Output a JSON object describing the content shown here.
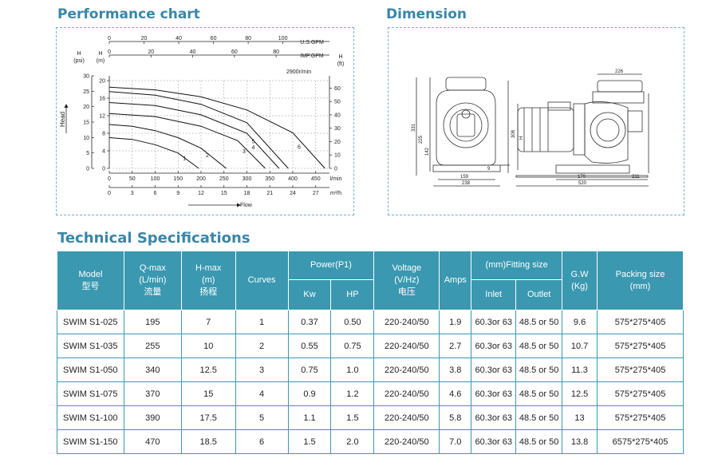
{
  "sections": {
    "performance_title": "Performance chart",
    "dimension_title": "Dimension",
    "spec_title": "Technical Specifications"
  },
  "chart_data": {
    "type": "line",
    "title": "",
    "rpm_label": "2900r/min",
    "axes": {
      "top1": {
        "unit": "U.S.GPM",
        "ticks": [
          "0",
          "20",
          "40",
          "60",
          "80",
          "100"
        ]
      },
      "top2": {
        "unit": "IMP.GPM",
        "ticks": [
          "0",
          "20",
          "40",
          "60",
          "80"
        ]
      },
      "left_psi": {
        "unit": "(psi)",
        "label": "H",
        "ticks": [
          "0",
          "5",
          "10",
          "15",
          "20",
          "25",
          "30"
        ]
      },
      "left_m": {
        "unit": "(m)",
        "label": "H",
        "ticks": [
          "0",
          "4",
          "8",
          "12",
          "16",
          "20"
        ]
      },
      "right_ft": {
        "unit": "(ft)",
        "label": "H",
        "ticks": [
          "0",
          "10",
          "20",
          "30",
          "40",
          "50",
          "60"
        ]
      },
      "bottom1": {
        "unit": "l/min",
        "ticks": [
          "0",
          "50",
          "100",
          "150",
          "200",
          "250",
          "300",
          "350",
          "400",
          "450"
        ]
      },
      "bottom2": {
        "unit": "m³/h",
        "ticks": [
          "0",
          "3",
          "6",
          "9",
          "12",
          "15",
          "18",
          "21",
          "24",
          "27"
        ]
      },
      "ylabel": "Head",
      "xlabel": "Flow",
      "xlim": [
        0,
        480
      ],
      "ylim": [
        0,
        20
      ]
    },
    "series": [
      {
        "name": "1",
        "x": [
          0,
          50,
          100,
          150,
          195
        ],
        "y": [
          7,
          6.6,
          5.4,
          3.5,
          0
        ]
      },
      {
        "name": "2",
        "x": [
          0,
          50,
          100,
          150,
          200,
          255
        ],
        "y": [
          10,
          9.6,
          8.6,
          7,
          4.6,
          0
        ]
      },
      {
        "name": "3",
        "x": [
          0,
          100,
          200,
          280,
          340
        ],
        "y": [
          12.5,
          11.8,
          9.6,
          6.3,
          0
        ]
      },
      {
        "name": "4",
        "x": [
          0,
          100,
          200,
          300,
          370
        ],
        "y": [
          15,
          14.3,
          12.2,
          8.0,
          0
        ]
      },
      {
        "name": "5",
        "x": [
          0,
          100,
          200,
          300,
          390
        ],
        "y": [
          17.5,
          16.7,
          14.6,
          10.4,
          0
        ]
      },
      {
        "name": "6",
        "x": [
          0,
          100,
          200,
          300,
          400,
          470
        ],
        "y": [
          18.5,
          17.9,
          16.3,
          13.3,
          8.1,
          0
        ]
      }
    ]
  },
  "dimension": {
    "front": {
      "d331": "331",
      "d225": "225",
      "d142": "142",
      "d159": "159",
      "d238": "238",
      "d9": "9"
    },
    "side": {
      "d226": "226",
      "d308": "308",
      "dH": "H",
      "d170": "170",
      "d211": "211",
      "d520": "520"
    }
  },
  "table": {
    "headers": {
      "model": [
        "Model",
        "型号"
      ],
      "qmax": [
        "Q-max",
        "(L/min)",
        "流量"
      ],
      "hmax": [
        "H-max",
        "(m)",
        "扬程"
      ],
      "curves": "Curves",
      "power": "Power(P1)",
      "kw": "Kw",
      "hp": "HP",
      "voltage": [
        "Voltage",
        "(V/Hz)",
        "电压"
      ],
      "amps": "Amps",
      "fitting": "(mm)Fitting size",
      "inlet": "Inlet",
      "outlet": "Outlet",
      "gw": [
        "G.W",
        "(Kg)"
      ],
      "packing": [
        "Packing size",
        "(mm)"
      ]
    },
    "rows": [
      [
        "SWIM S1-025",
        "195",
        "7",
        "1",
        "0.37",
        "0.50",
        "220-240/50",
        "1.9",
        "60.3or 63",
        "48.5 or 50",
        "9.6",
        "575*275*405"
      ],
      [
        "SWIM S1-035",
        "255",
        "10",
        "2",
        "0.55",
        "0.75",
        "220-240/50",
        "2.7",
        "60.3or 63",
        "48.5 or 50",
        "10.7",
        "575*275*405"
      ],
      [
        "SWIM S1-050",
        "340",
        "12.5",
        "3",
        "0.75",
        "1.0",
        "220-240/50",
        "3.8",
        "60.3or 63",
        "48.5 or 50",
        "11.3",
        "575*275*405"
      ],
      [
        "SWIM S1-075",
        "370",
        "15",
        "4",
        "0.9",
        "1.2",
        "220-240/50",
        "4.6",
        "60.3or 63",
        "48.5 or 50",
        "12.5",
        "575*275*405"
      ],
      [
        "SWIM S1-100",
        "390",
        "17.5",
        "5",
        "1.1",
        "1.5",
        "220-240/50",
        "5.8",
        "60.3or 63",
        "48.5 or 50",
        "13",
        "575*275*405"
      ],
      [
        "SWIM S1-150",
        "470",
        "18.5",
        "6",
        "1.5",
        "2.0",
        "220-240/50",
        "7.0",
        "60.3or 63",
        "48.5 or 50",
        "13.8",
        "6575*275*405"
      ]
    ]
  }
}
